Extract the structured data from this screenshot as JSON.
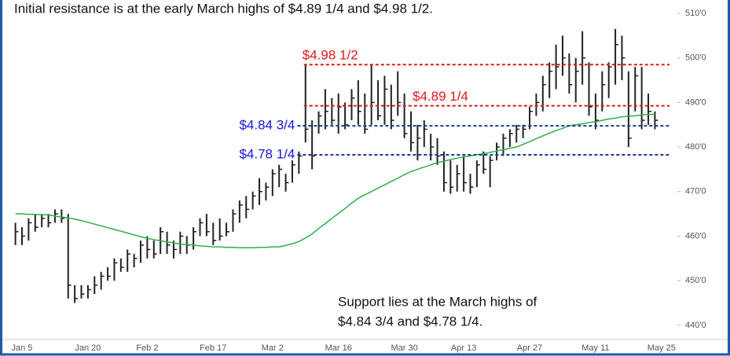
{
  "chart_data": {
    "type": "ohlc",
    "annotations": [
      "Initial resistance is at the early March highs of $4.89 1/4 and $4.98 1/2.",
      "Support lies at the March highs of",
      "$4.84 3/4 and $4.78 1/4."
    ],
    "categories": [
      null,
      "Jan 5",
      null,
      null,
      null,
      null,
      null,
      null,
      null,
      null,
      null,
      "Jan 20",
      null,
      null,
      null,
      null,
      null,
      null,
      null,
      null,
      "Feb 2",
      null,
      null,
      null,
      null,
      null,
      null,
      null,
      null,
      null,
      "Feb 17",
      null,
      null,
      null,
      null,
      null,
      null,
      null,
      null,
      "Mar 2",
      null,
      null,
      null,
      null,
      null,
      null,
      null,
      null,
      null,
      "Mar 16",
      null,
      null,
      null,
      null,
      null,
      null,
      null,
      null,
      null,
      "Mar 30",
      null,
      null,
      null,
      null,
      null,
      null,
      null,
      null,
      "Apr 13",
      null,
      null,
      null,
      null,
      null,
      null,
      null,
      null,
      null,
      "Apr 27",
      null,
      null,
      null,
      null,
      null,
      null,
      null,
      null,
      null,
      "May 11",
      null,
      null,
      null,
      null,
      null,
      null,
      null,
      null,
      null,
      "May 25"
    ],
    "high": [
      463,
      462,
      464,
      465,
      465,
      465,
      466,
      466,
      465,
      449,
      449,
      449,
      451,
      452,
      453,
      455,
      455,
      457,
      456,
      459,
      460,
      459,
      462,
      461,
      459,
      461,
      460,
      462,
      464,
      465,
      463,
      464,
      463,
      466,
      468,
      469,
      470,
      473,
      472,
      475,
      476,
      474,
      477,
      479,
      498.5,
      486,
      488,
      493,
      491,
      492,
      490,
      493,
      495,
      492,
      498.5,
      495,
      496,
      494,
      497,
      492,
      488,
      485,
      486,
      483,
      482,
      479,
      477,
      476,
      478,
      474,
      477,
      479,
      478,
      481,
      483,
      484,
      485,
      485,
      489,
      492,
      496,
      499,
      503,
      505,
      501,
      500,
      506,
      499,
      492,
      497,
      499,
      506.5,
      505,
      497,
      498,
      498,
      492,
      488,
      null
    ],
    "low": [
      458,
      458,
      459,
      461,
      462,
      462,
      463,
      463,
      446,
      445,
      446,
      446,
      447,
      448,
      450,
      450,
      452,
      452,
      453,
      454,
      455,
      455,
      456,
      456,
      455,
      456,
      456,
      457,
      460,
      460,
      458,
      459,
      460,
      461,
      463,
      464,
      466,
      467,
      468,
      469,
      471,
      470,
      472,
      474,
      481,
      475,
      483,
      484,
      485,
      483,
      484,
      486,
      485,
      483,
      485,
      486,
      485,
      484,
      487,
      482,
      479,
      477,
      480,
      477,
      476,
      470,
      469.5,
      470,
      470,
      469.5,
      471,
      474,
      471,
      477,
      478,
      480,
      481,
      482,
      484,
      487,
      488,
      491,
      493,
      496,
      492,
      490,
      494,
      487,
      484,
      488,
      491,
      494,
      495,
      480,
      488,
      484,
      485,
      484,
      null
    ],
    "close": [
      461,
      460,
      463,
      462,
      464,
      463,
      465,
      464,
      449,
      446,
      447,
      448,
      449,
      451,
      451,
      454,
      453,
      456,
      455,
      458,
      457,
      456,
      461,
      458,
      457,
      460,
      458,
      461,
      463,
      461,
      459,
      460,
      461,
      465,
      467,
      466,
      469,
      470,
      471,
      474,
      475,
      472,
      476,
      478,
      484,
      478,
      487,
      488,
      486,
      489,
      485,
      491,
      488,
      484,
      490,
      487,
      493,
      486,
      490,
      483,
      481,
      482,
      484,
      480,
      478,
      472,
      471,
      474,
      472,
      471,
      476,
      475,
      477,
      480,
      482,
      483,
      484,
      484,
      488,
      490,
      494,
      497,
      498,
      500,
      494,
      497,
      500,
      489,
      486,
      494,
      498,
      503,
      500,
      482,
      496,
      486,
      488,
      486,
      null
    ],
    "color": "#222222",
    "ma": {
      "color": "#2db04b",
      "values": [
        465,
        465,
        464.9,
        464.9,
        464.8,
        464.8,
        464.5,
        464.3,
        464.1,
        463.8,
        463.5,
        463.1,
        462.7,
        462.3,
        461.9,
        461.5,
        461.1,
        460.7,
        460.3,
        459.9,
        459.5,
        459.2,
        459,
        458.7,
        458.5,
        458.2,
        458.1,
        458,
        457.8,
        457.7,
        457.6,
        457.6,
        457.5,
        457.5,
        457.4,
        457.4,
        457.4,
        457.5,
        457.5,
        457.6,
        457.6,
        457.9,
        458.3,
        458.8,
        459.6,
        460.5,
        461.7,
        462.8,
        464,
        465.1,
        466.2,
        467.4,
        468.5,
        469.3,
        470,
        470.8,
        471.5,
        472.3,
        473,
        473.8,
        474.5,
        475,
        475.5,
        476,
        476.5,
        476.8,
        477.2,
        477.5,
        477.8,
        478,
        478.3,
        478.5,
        478.8,
        479.1,
        479.4,
        479.7,
        480,
        480.6,
        481.2,
        481.9,
        482.5,
        483.1,
        483.7,
        484.2,
        484.8,
        485,
        485.2,
        485.5,
        485.7,
        486,
        486.3,
        486.5,
        486.8,
        486.9,
        487,
        487.2,
        487.3,
        487.4,
        null
      ]
    },
    "levels": [
      {
        "value": 498.5,
        "label": "$4.98 1/2",
        "color": "#e01818"
      },
      {
        "value": 489.25,
        "label": "$4.89 1/4",
        "color": "#e01818"
      },
      {
        "value": 484.75,
        "label": "$4.84 3/4",
        "color": "#1a3c8c"
      },
      {
        "value": 478.25,
        "label": "$4.78 1/4",
        "color": "#1a3c8c"
      }
    ],
    "level_label_colors": [
      "#e01818",
      "#e01818",
      "#1515e0",
      "#1515e0"
    ],
    "ylim": [
      438,
      512
    ],
    "yticks": [
      {
        "value": 510,
        "label": "510'0"
      },
      {
        "value": 500,
        "label": "500'0"
      },
      {
        "value": 490,
        "label": "490'0"
      },
      {
        "value": 480,
        "label": "480'0"
      },
      {
        "value": 470,
        "label": "470'0"
      },
      {
        "value": 460,
        "label": "460'0"
      },
      {
        "value": 450,
        "label": "450'0"
      },
      {
        "value": 440,
        "label": "440'0"
      }
    ]
  }
}
